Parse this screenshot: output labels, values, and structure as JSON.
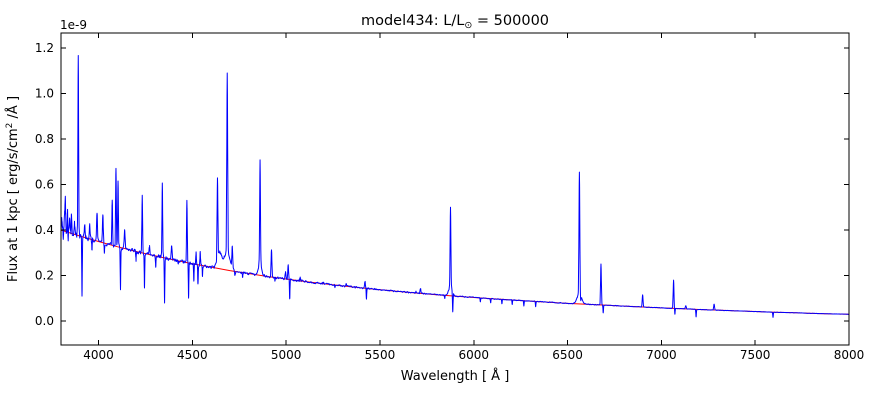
{
  "chart_data": {
    "type": "line",
    "title": {
      "pre": "model434: L/L",
      "sub": "⊙",
      "post": " = 500000"
    },
    "xlabel": "Wavelength [ Å ]",
    "ylabel": {
      "pre": "Flux at 1 kpc [ erg/s/cm",
      "sup": "2",
      "post": " /Å ]"
    },
    "offset_text": "1e-9",
    "flux_unit_scale": "1e-9",
    "xlim": [
      3800,
      8000
    ],
    "ylim": [
      -0.105,
      1.266
    ],
    "xticks": [
      4000,
      4500,
      5000,
      5500,
      6000,
      6500,
      7000,
      7500,
      8000
    ],
    "yticks": [
      0.0,
      0.2,
      0.4,
      0.6,
      0.8,
      1.0,
      1.2
    ],
    "grid": false,
    "legend": "none",
    "colors": {
      "spectrum": "#0000ff",
      "continuum": "#ff0000",
      "axes": "#000000",
      "background": "#ffffff"
    },
    "series_names": [
      "spectrum",
      "continuum"
    ],
    "continuum": {
      "x": [
        3800,
        3900,
        4000,
        4100,
        4200,
        4300,
        4400,
        4500,
        4600,
        4700,
        4800,
        4900,
        5000,
        5100,
        5200,
        5300,
        5400,
        5500,
        5600,
        5700,
        5800,
        5900,
        6000,
        6100,
        6200,
        6300,
        6400,
        6500,
        6600,
        6700,
        6800,
        6900,
        7000,
        7100,
        7200,
        7300,
        7400,
        7500,
        7600,
        7700,
        7800,
        7900,
        8000
      ],
      "y": [
        0.4,
        0.374,
        0.35,
        0.327,
        0.306,
        0.287,
        0.269,
        0.252,
        0.237,
        0.222,
        0.209,
        0.196,
        0.185,
        0.174,
        0.164,
        0.155,
        0.146,
        0.138,
        0.13,
        0.123,
        0.116,
        0.11,
        0.104,
        0.098,
        0.093,
        0.088,
        0.083,
        0.078,
        0.074,
        0.07,
        0.066,
        0.062,
        0.058,
        0.055,
        0.051,
        0.048,
        0.045,
        0.042,
        0.039,
        0.037,
        0.034,
        0.032,
        0.03
      ]
    },
    "emission_lines": [
      [
        3805,
        0.45
      ],
      [
        3819,
        0.47
      ],
      [
        3823,
        0.53,
        1.5
      ],
      [
        3835,
        0.5,
        1.5
      ],
      [
        3846,
        0.445
      ],
      [
        3856,
        0.47,
        1.5
      ],
      [
        3872,
        0.43
      ],
      [
        3892,
        1.17,
        1.8
      ],
      [
        3926,
        0.42
      ],
      [
        3953,
        0.42
      ],
      [
        3992,
        0.48
      ],
      [
        4023,
        0.47
      ],
      [
        4073,
        0.53,
        1.8
      ],
      [
        4093,
        0.68,
        1.8
      ],
      [
        4104,
        0.62,
        1.8
      ],
      [
        4139,
        0.4
      ],
      [
        4233,
        0.55,
        1.8
      ],
      [
        4271,
        0.33
      ],
      [
        4340,
        0.6,
        1.8
      ],
      [
        4390,
        0.33
      ],
      [
        4471,
        0.53,
        1.8
      ],
      [
        4520,
        0.3,
        1.5
      ],
      [
        4542,
        0.3,
        1.5
      ],
      [
        4634,
        0.58,
        2.0
      ],
      [
        4645,
        0.3,
        12.0
      ],
      [
        4686,
        1.01,
        2.2
      ],
      [
        4686,
        0.3,
        16.0
      ],
      [
        4713,
        0.31,
        2.0
      ],
      [
        4861,
        0.645,
        2.0
      ],
      [
        4861,
        0.26,
        8.0
      ],
      [
        4922,
        0.315,
        2.0
      ],
      [
        4997,
        0.215
      ],
      [
        5011,
        0.245
      ],
      [
        5075,
        0.19
      ],
      [
        5198,
        0.172
      ],
      [
        5320,
        0.162
      ],
      [
        5420,
        0.175
      ],
      [
        5692,
        0.13
      ],
      [
        5716,
        0.145
      ],
      [
        5876,
        0.46,
        2.0
      ],
      [
        5876,
        0.15,
        10.0
      ],
      [
        6563,
        0.61,
        2.2
      ],
      [
        6563,
        0.12,
        12.0
      ],
      [
        6678,
        0.25,
        2.0
      ],
      [
        6900,
        0.115
      ],
      [
        7065,
        0.18,
        2.0
      ],
      [
        7130,
        0.068
      ],
      [
        7281,
        0.075
      ]
    ],
    "absorption_lines": [
      [
        3812,
        0.355
      ],
      [
        3837,
        0.33
      ],
      [
        3912,
        0.12
      ],
      [
        3965,
        0.31
      ],
      [
        4031,
        0.3
      ],
      [
        4117,
        0.14
      ],
      [
        4200,
        0.27
      ],
      [
        4245,
        0.145
      ],
      [
        4305,
        0.24
      ],
      [
        4352,
        0.085
      ],
      [
        4425,
        0.25
      ],
      [
        4480,
        0.1
      ],
      [
        4508,
        0.175
      ],
      [
        4530,
        0.16
      ],
      [
        4554,
        0.2
      ],
      [
        4727,
        0.2,
        2.0
      ],
      [
        4768,
        0.195
      ],
      [
        4940,
        0.18
      ],
      [
        5019,
        0.095
      ],
      [
        5260,
        0.15
      ],
      [
        5428,
        0.095
      ],
      [
        5845,
        0.1
      ],
      [
        5888,
        0.02,
        1.5
      ],
      [
        6035,
        0.085
      ],
      [
        6090,
        0.08
      ],
      [
        6150,
        0.076
      ],
      [
        6205,
        0.072
      ],
      [
        6267,
        0.068
      ],
      [
        6330,
        0.064
      ],
      [
        6570,
        0.05,
        1.5
      ],
      [
        6690,
        0.035
      ],
      [
        7072,
        0.03
      ],
      [
        7185,
        0.018
      ],
      [
        7595,
        0.016
      ]
    ],
    "noise": {
      "amplitude": 0.012
    }
  }
}
